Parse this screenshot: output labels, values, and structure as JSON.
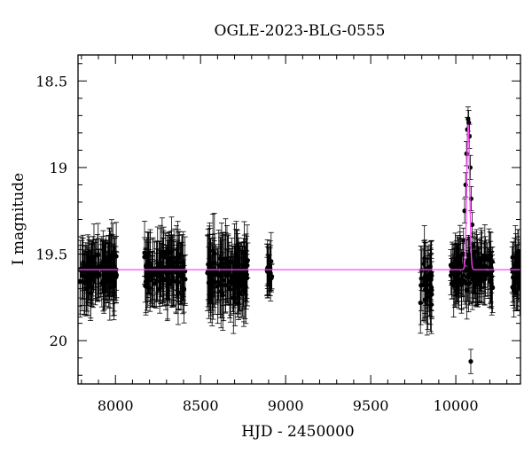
{
  "chart_data": {
    "type": "scatter",
    "title": "OGLE-2023-BLG-0555",
    "xlabel": "HJD - 2450000",
    "ylabel": "I magnitude",
    "xlim": [
      7780,
      10380
    ],
    "ylim": [
      20.25,
      18.35
    ],
    "y_inverted": true,
    "x_ticks": [
      8000,
      8500,
      9000,
      9500,
      10000
    ],
    "y_ticks": [
      18.5,
      19,
      19.5,
      20
    ],
    "grid": false,
    "colors": {
      "points": "#000000",
      "model": "#ff44ff",
      "frame": "#000000"
    },
    "series": [
      {
        "kind": "points_with_errorbars",
        "seasons": [
          {
            "x_range": [
              7790,
              8010
            ],
            "center_mag": 19.6,
            "scatter": 0.1,
            "error": 0.16
          },
          {
            "x_range": [
              8170,
              8410
            ],
            "center_mag": 19.6,
            "scatter": 0.1,
            "error": 0.17
          },
          {
            "x_range": [
              8540,
              8780
            ],
            "center_mag": 19.62,
            "scatter": 0.11,
            "error": 0.18
          },
          {
            "x_range": [
              8890,
              8920
            ],
            "center_mag": 19.58,
            "scatter": 0.08,
            "error": 0.13
          },
          {
            "x_range": [
              9790,
              9860
            ],
            "center_mag": 19.65,
            "scatter": 0.13,
            "error": 0.18
          },
          {
            "x_range": [
              9970,
              10220
            ],
            "center_mag": 19.6,
            "scatter": 0.1,
            "error": 0.14
          },
          {
            "x_range": [
              10330,
              10380
            ],
            "center_mag": 19.6,
            "scatter": 0.1,
            "error": 0.15
          }
        ],
        "peak_points": [
          {
            "x": 10045,
            "y": 19.42
          },
          {
            "x": 10052,
            "y": 19.25
          },
          {
            "x": 10058,
            "y": 19.1
          },
          {
            "x": 10063,
            "y": 18.92
          },
          {
            "x": 10068,
            "y": 18.78
          },
          {
            "x": 10072,
            "y": 18.72
          },
          {
            "x": 10076,
            "y": 18.74
          },
          {
            "x": 10080,
            "y": 18.82
          },
          {
            "x": 10085,
            "y": 19.0
          },
          {
            "x": 10090,
            "y": 19.18
          },
          {
            "x": 10096,
            "y": 19.33
          },
          {
            "x": 10102,
            "y": 19.45
          },
          {
            "x": 10088,
            "y": 20.12
          },
          {
            "x": 10066,
            "y": 19.55
          },
          {
            "x": 10040,
            "y": 19.5
          }
        ]
      },
      {
        "kind": "model_line",
        "baseline": 19.59,
        "t0": 10073,
        "peak_mag": 18.75,
        "width_days": 12
      }
    ]
  }
}
